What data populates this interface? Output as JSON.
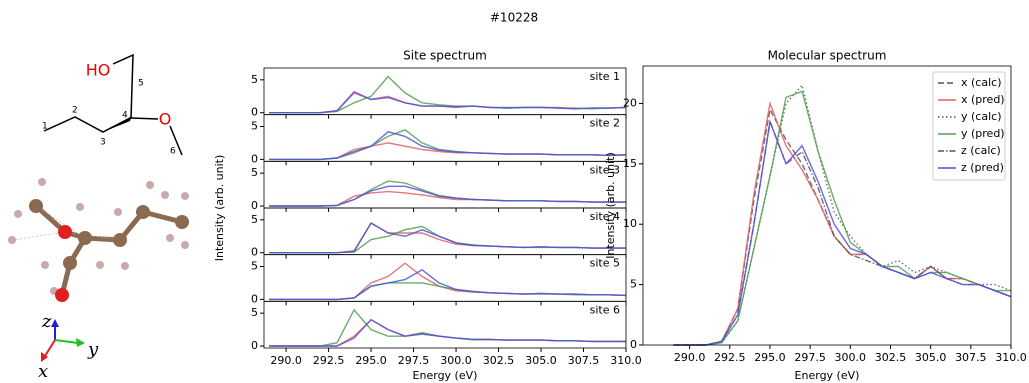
{
  "title": "#10228",
  "molecule": {
    "ho": "HO",
    "o": "O",
    "numbers": [
      "1",
      "2",
      "3",
      "4",
      "5",
      "6"
    ]
  },
  "axes": [
    "z",
    "y",
    "x"
  ],
  "site_panel": {
    "title": "Site spectrum",
    "xlabel": "Energy (eV)",
    "ylabel": "Intensity (arb. unit)"
  },
  "chart_data": [
    {
      "type": "line",
      "annotation": "site 1",
      "x": [
        289,
        290,
        291,
        292,
        293,
        294,
        295,
        296,
        297,
        298,
        299,
        300,
        301,
        302,
        303,
        304,
        305,
        306,
        307,
        308,
        309,
        310
      ],
      "xlim": [
        288.7,
        310
      ],
      "ylim": [
        -0.3,
        6.8
      ],
      "xticks": [
        290,
        292.5,
        295,
        297.5,
        300,
        302.5,
        305,
        307.5,
        310
      ],
      "yticks": [
        0,
        5
      ],
      "series": [
        {
          "color": "#e06060",
          "values": [
            0,
            0,
            0,
            0,
            0.3,
            3,
            2,
            2.5,
            1.5,
            1,
            1,
            0.8,
            1,
            0.8,
            0.7,
            0.8,
            0.8,
            0.8,
            0.6,
            0.7,
            0.7,
            0.8
          ]
        },
        {
          "color": "#50a050",
          "values": [
            0,
            0,
            0,
            0,
            0.2,
            1.5,
            2.5,
            5.5,
            3,
            1.5,
            1.2,
            1,
            1,
            0.8,
            0.8,
            0.8,
            0.8,
            0.7,
            0.7,
            0.6,
            0.7,
            0.8
          ]
        },
        {
          "color": "#5050e0",
          "values": [
            0,
            0,
            0,
            0,
            0.3,
            3.2,
            2,
            2.3,
            1.5,
            1,
            1,
            0.9,
            1,
            0.8,
            0.7,
            0.8,
            0.8,
            0.7,
            0.6,
            0.7,
            0.7,
            0.8
          ]
        }
      ]
    },
    {
      "type": "line",
      "annotation": "site 2",
      "x": [
        289,
        290,
        291,
        292,
        293,
        294,
        295,
        296,
        297,
        298,
        299,
        300,
        301,
        302,
        303,
        304,
        305,
        306,
        307,
        308,
        309,
        310
      ],
      "xlim": [
        288.7,
        310
      ],
      "ylim": [
        -0.3,
        6.8
      ],
      "xticks": [
        290,
        292.5,
        295,
        297.5,
        300,
        302.5,
        305,
        307.5,
        310
      ],
      "yticks": [
        0,
        5
      ],
      "series": [
        {
          "color": "#e06060",
          "values": [
            0,
            0,
            0,
            0,
            0.2,
            1.5,
            2,
            2.5,
            2,
            1.5,
            1.2,
            1,
            1,
            0.9,
            0.8,
            0.8,
            0.8,
            0.7,
            0.7,
            0.7,
            0.6,
            0.7
          ]
        },
        {
          "color": "#50a050",
          "values": [
            0,
            0,
            0,
            0,
            0.2,
            1,
            2,
            3.5,
            4.5,
            2.5,
            1.5,
            1.2,
            1,
            0.9,
            0.8,
            0.8,
            0.8,
            0.7,
            0.7,
            0.7,
            0.6,
            0.7
          ]
        },
        {
          "color": "#5050e0",
          "values": [
            0,
            0,
            0,
            0,
            0.2,
            1.2,
            2,
            4.2,
            3.5,
            2,
            1.4,
            1.1,
            1,
            0.9,
            0.8,
            0.8,
            0.8,
            0.7,
            0.7,
            0.7,
            0.6,
            0.7
          ]
        }
      ]
    },
    {
      "type": "line",
      "annotation": "site 3",
      "x": [
        289,
        290,
        291,
        292,
        293,
        294,
        295,
        296,
        297,
        298,
        299,
        300,
        301,
        302,
        303,
        304,
        305,
        306,
        307,
        308,
        309,
        310
      ],
      "xlim": [
        288.7,
        310
      ],
      "ylim": [
        -0.3,
        6.8
      ],
      "xticks": [
        290,
        292.5,
        295,
        297.5,
        300,
        302.5,
        305,
        307.5,
        310
      ],
      "yticks": [
        0,
        5
      ],
      "series": [
        {
          "color": "#e06060",
          "values": [
            0,
            0,
            0,
            0,
            0.1,
            1.5,
            2,
            2.2,
            2,
            1.7,
            1.3,
            1,
            1,
            0.9,
            0.8,
            0.8,
            0.8,
            0.7,
            0.7,
            0.6,
            0.6,
            0.6
          ]
        },
        {
          "color": "#50a050",
          "values": [
            0,
            0,
            0,
            0,
            0.1,
            1,
            2.5,
            3.8,
            3.5,
            2.5,
            1.6,
            1.2,
            1,
            0.9,
            0.8,
            0.8,
            0.8,
            0.7,
            0.7,
            0.6,
            0.6,
            0.6
          ]
        },
        {
          "color": "#5050e0",
          "values": [
            0,
            0,
            0,
            0,
            0.1,
            1,
            2.3,
            3,
            3,
            2.3,
            1.5,
            1.2,
            1,
            0.9,
            0.8,
            0.8,
            0.8,
            0.7,
            0.7,
            0.6,
            0.6,
            0.6
          ]
        }
      ]
    },
    {
      "type": "line",
      "annotation": "site 4",
      "x": [
        289,
        290,
        291,
        292,
        293,
        294,
        295,
        296,
        297,
        298,
        299,
        300,
        301,
        302,
        303,
        304,
        305,
        306,
        307,
        308,
        309,
        310
      ],
      "xlim": [
        288.7,
        310
      ],
      "ylim": [
        -0.3,
        6.8
      ],
      "xticks": [
        290,
        292.5,
        295,
        297.5,
        300,
        302.5,
        305,
        307.5,
        310
      ],
      "yticks": [
        0,
        5
      ],
      "series": [
        {
          "color": "#e06060",
          "values": [
            0,
            0,
            0,
            0,
            0,
            0.3,
            4.5,
            3,
            3,
            3,
            2,
            1.3,
            1.1,
            1,
            0.9,
            0.8,
            0.9,
            0.8,
            0.8,
            0.7,
            0.7,
            0.7
          ]
        },
        {
          "color": "#50a050",
          "values": [
            0,
            0,
            0,
            0,
            0,
            0.1,
            2,
            2.5,
            3.5,
            4,
            2.5,
            1.5,
            1.2,
            1,
            0.9,
            0.8,
            0.8,
            0.8,
            0.8,
            0.7,
            0.7,
            0.7
          ]
        },
        {
          "color": "#5050e0",
          "values": [
            0,
            0,
            0,
            0,
            0,
            0.2,
            4.5,
            3,
            2.5,
            3.5,
            2.5,
            1.5,
            1.1,
            1,
            0.9,
            0.8,
            0.9,
            0.8,
            0.8,
            0.7,
            0.7,
            0.7
          ]
        }
      ]
    },
    {
      "type": "line",
      "annotation": "site 5",
      "x": [
        289,
        290,
        291,
        292,
        293,
        294,
        295,
        296,
        297,
        298,
        299,
        300,
        301,
        302,
        303,
        304,
        305,
        306,
        307,
        308,
        309,
        310
      ],
      "xlim": [
        288.7,
        310
      ],
      "ylim": [
        -0.3,
        6.8
      ],
      "xticks": [
        290,
        292.5,
        295,
        297.5,
        300,
        302.5,
        305,
        307.5,
        310
      ],
      "yticks": [
        0,
        5
      ],
      "series": [
        {
          "color": "#e06060",
          "values": [
            0,
            0,
            0,
            0,
            0,
            0.2,
            2.5,
            3.5,
            5.5,
            3.5,
            2,
            1.3,
            1.1,
            1,
            0.9,
            0.8,
            0.9,
            0.8,
            0.8,
            0.7,
            0.7,
            0.6
          ]
        },
        {
          "color": "#50a050",
          "values": [
            0,
            0,
            0,
            0,
            0,
            0.2,
            2,
            2.5,
            2.5,
            2.5,
            2,
            1.5,
            1.2,
            1,
            0.9,
            0.8,
            0.8,
            0.8,
            0.7,
            0.7,
            0.7,
            0.6
          ]
        },
        {
          "color": "#5050e0",
          "values": [
            0,
            0,
            0,
            0,
            0,
            0.2,
            2,
            2.5,
            3,
            4.5,
            2.5,
            1.5,
            1.2,
            1,
            0.9,
            0.8,
            0.9,
            0.8,
            0.8,
            0.7,
            0.7,
            0.6
          ]
        }
      ]
    },
    {
      "type": "line",
      "annotation": "site 6",
      "x": [
        289,
        290,
        291,
        292,
        293,
        294,
        295,
        296,
        297,
        298,
        299,
        300,
        301,
        302,
        303,
        304,
        305,
        306,
        307,
        308,
        309,
        310
      ],
      "xlim": [
        288.7,
        310
      ],
      "ylim": [
        -0.3,
        6.8
      ],
      "xticks": [
        {
          "value": 290,
          "label": "290.0"
        },
        {
          "value": 292.5,
          "label": "292.5"
        },
        {
          "value": 295,
          "label": "295.0"
        },
        {
          "value": 297.5,
          "label": "297.5"
        },
        {
          "value": 300,
          "label": "300.0"
        },
        {
          "value": 302.5,
          "label": "302.5"
        },
        {
          "value": 305,
          "label": "305.0"
        },
        {
          "value": 307.5,
          "label": "307.5"
        },
        {
          "value": 310,
          "label": "310.0"
        }
      ],
      "yticks": [
        0,
        5
      ],
      "series": [
        {
          "color": "#e06060",
          "values": [
            0,
            0,
            0,
            0,
            0,
            1.5,
            4,
            2.5,
            1.5,
            2,
            1.5,
            1.2,
            1,
            1,
            0.9,
            0.9,
            0.9,
            0.8,
            0.8,
            0.7,
            0.7,
            0.7
          ]
        },
        {
          "color": "#50a050",
          "values": [
            0,
            0,
            0,
            0,
            0.5,
            5.5,
            2.5,
            1.5,
            1.5,
            2,
            1.5,
            1.2,
            1,
            1,
            0.9,
            0.9,
            0.9,
            0.8,
            0.8,
            0.7,
            0.7,
            0.7
          ]
        },
        {
          "color": "#5050e0",
          "values": [
            0,
            0,
            0,
            0,
            0,
            1.2,
            4,
            2.5,
            1.5,
            1.8,
            1.5,
            1.2,
            1,
            1,
            0.9,
            0.9,
            0.9,
            0.8,
            0.8,
            0.7,
            0.7,
            0.7
          ]
        }
      ]
    },
    {
      "type": "line",
      "title": "Molecular spectrum",
      "xlabel": "Energy (eV)",
      "ylabel": "Intensity (arb. unit)",
      "legend": "upper right",
      "x": [
        289,
        290,
        291,
        292,
        293,
        294,
        295,
        296,
        297,
        298,
        299,
        300,
        301,
        302,
        303,
        304,
        305,
        306,
        307,
        308,
        309,
        310
      ],
      "xlim": [
        287.1,
        310
      ],
      "ylim": [
        0,
        23.1
      ],
      "xticks": [
        {
          "value": 290,
          "label": "290.0"
        },
        {
          "value": 292.5,
          "label": "292.5"
        },
        {
          "value": 295,
          "label": "295.0"
        },
        {
          "value": 297.5,
          "label": "297.5"
        },
        {
          "value": 300,
          "label": "300.0"
        },
        {
          "value": 302.5,
          "label": "302.5"
        },
        {
          "value": 305,
          "label": "305.0"
        },
        {
          "value": 307.5,
          "label": "307.5"
        },
        {
          "value": 310,
          "label": "310.0"
        }
      ],
      "yticks": [
        0,
        5,
        10,
        15,
        20
      ],
      "series": [
        {
          "name": "x (calc)",
          "color": "#555555",
          "dash": "dashed",
          "values": [
            0,
            0,
            0,
            0.3,
            3,
            12,
            19.5,
            17,
            15,
            12,
            9,
            7.5,
            7.5,
            6.5,
            6,
            5.5,
            6.5,
            5.5,
            5.5,
            5,
            4.5,
            4
          ]
        },
        {
          "name": "x (pred)",
          "color": "#e06060",
          "dash": "solid",
          "values": [
            0,
            0,
            0,
            0.3,
            3,
            12.5,
            20,
            16.5,
            14.5,
            12,
            9,
            7.5,
            7.5,
            6.5,
            6,
            5.5,
            6.5,
            5.5,
            5.5,
            5,
            4.5,
            4
          ]
        },
        {
          "name": "y (calc)",
          "color": "#555555",
          "dash": "dotted",
          "values": [
            0,
            0,
            0,
            0.2,
            2,
            8,
            14,
            20,
            21.5,
            16,
            11,
            9,
            7.5,
            6.5,
            7,
            6,
            6.5,
            6,
            5.5,
            5,
            5,
            4.5
          ]
        },
        {
          "name": "y (pred)",
          "color": "#50a050",
          "dash": "solid",
          "values": [
            0,
            0,
            0,
            0.2,
            2,
            8,
            14,
            20.5,
            21,
            16,
            12,
            8.5,
            7.5,
            6.5,
            6.5,
            5.5,
            6,
            6,
            5.5,
            5,
            4.5,
            4.5
          ]
        },
        {
          "name": "z (calc)",
          "color": "#555555",
          "dash": "dashdot",
          "values": [
            0,
            0,
            0,
            0.3,
            2.5,
            10,
            18.5,
            15,
            16,
            13,
            9,
            7.5,
            7,
            6.5,
            6,
            5.5,
            6.5,
            5.5,
            5,
            5,
            4.5,
            4
          ]
        },
        {
          "name": "z (pred)",
          "color": "#5050e0",
          "dash": "solid",
          "values": [
            0,
            0,
            0,
            0.3,
            2.5,
            10,
            18.5,
            15,
            16.5,
            13.5,
            10,
            8,
            7.5,
            6.5,
            6,
            5.5,
            6,
            5.5,
            5,
            5,
            4.5,
            4
          ]
        }
      ]
    }
  ]
}
